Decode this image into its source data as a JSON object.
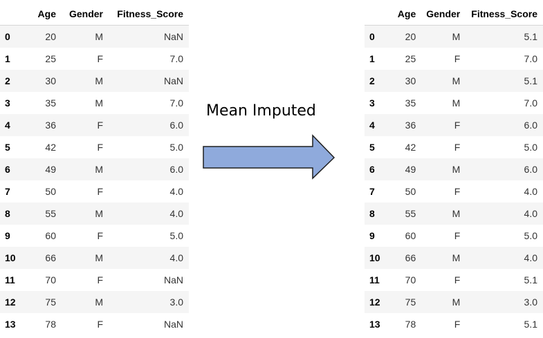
{
  "columns": [
    "",
    "Age",
    "Gender",
    "Fitness_Score"
  ],
  "label": "Mean Imputed",
  "colors": {
    "arrow_fill": "#8faadc",
    "arrow_stroke": "#1f1f1f",
    "row_stripe": "#f5f5f5"
  },
  "before": [
    [
      "0",
      "20",
      "M",
      "NaN"
    ],
    [
      "1",
      "25",
      "F",
      "7.0"
    ],
    [
      "2",
      "30",
      "M",
      "NaN"
    ],
    [
      "3",
      "35",
      "M",
      "7.0"
    ],
    [
      "4",
      "36",
      "F",
      "6.0"
    ],
    [
      "5",
      "42",
      "F",
      "5.0"
    ],
    [
      "6",
      "49",
      "M",
      "6.0"
    ],
    [
      "7",
      "50",
      "F",
      "4.0"
    ],
    [
      "8",
      "55",
      "M",
      "4.0"
    ],
    [
      "9",
      "60",
      "F",
      "5.0"
    ],
    [
      "10",
      "66",
      "M",
      "4.0"
    ],
    [
      "11",
      "70",
      "F",
      "NaN"
    ],
    [
      "12",
      "75",
      "M",
      "3.0"
    ],
    [
      "13",
      "78",
      "F",
      "NaN"
    ]
  ],
  "after": [
    [
      "0",
      "20",
      "M",
      "5.1"
    ],
    [
      "1",
      "25",
      "F",
      "7.0"
    ],
    [
      "2",
      "30",
      "M",
      "5.1"
    ],
    [
      "3",
      "35",
      "M",
      "7.0"
    ],
    [
      "4",
      "36",
      "F",
      "6.0"
    ],
    [
      "5",
      "42",
      "F",
      "5.0"
    ],
    [
      "6",
      "49",
      "M",
      "6.0"
    ],
    [
      "7",
      "50",
      "F",
      "4.0"
    ],
    [
      "8",
      "55",
      "M",
      "4.0"
    ],
    [
      "9",
      "60",
      "F",
      "5.0"
    ],
    [
      "10",
      "66",
      "M",
      "4.0"
    ],
    [
      "11",
      "70",
      "F",
      "5.1"
    ],
    [
      "12",
      "75",
      "M",
      "3.0"
    ],
    [
      "13",
      "78",
      "F",
      "5.1"
    ]
  ]
}
